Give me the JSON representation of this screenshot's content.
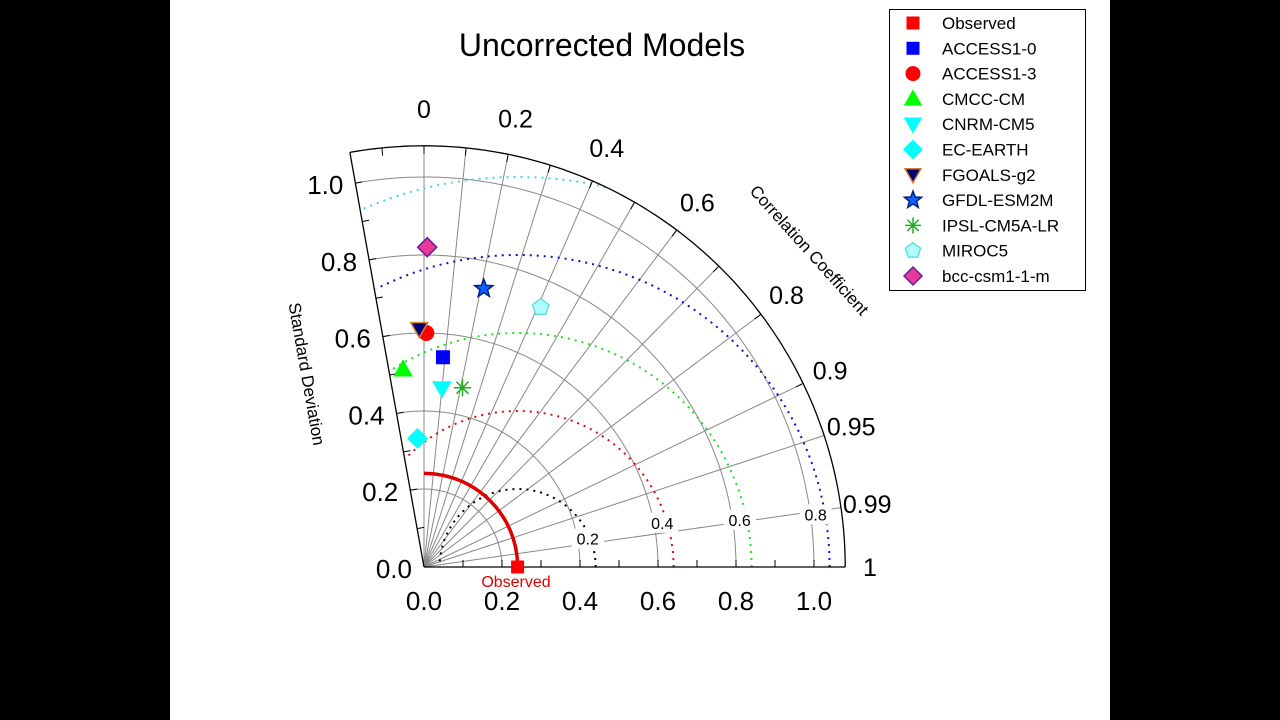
{
  "chart_data": {
    "type": "taylor",
    "title": "Uncorrected Models",
    "xlabel": "",
    "ylabel": "Standard Deviation",
    "angular_label": "Correlation Coefficient",
    "std_range": [
      0,
      1.08
    ],
    "std_ticks": [
      "0.0",
      "0.2",
      "0.4",
      "0.6",
      "0.8",
      "1.0"
    ],
    "std_tick_values": [
      0,
      0.2,
      0.4,
      0.6,
      0.8,
      1.0
    ],
    "correlation_ticks": [
      "0",
      "0.2",
      "0.4",
      "0.6",
      "0.8",
      "0.9",
      "0.95",
      "0.99",
      "1"
    ],
    "correlation_tick_values": [
      0,
      0.2,
      0.4,
      0.6,
      0.8,
      0.9,
      0.95,
      0.99,
      1
    ],
    "correlation_min": -0.176,
    "rms_contours": [
      {
        "value": 0.2,
        "label": "0.2",
        "color": "#000000"
      },
      {
        "value": 0.4,
        "label": "0.4",
        "color": "#d01010"
      },
      {
        "value": 0.6,
        "label": "0.6",
        "color": "#22dd22"
      },
      {
        "value": 0.8,
        "label": "0.8",
        "color": "#1010c0"
      },
      {
        "value": 1.0,
        "label": "",
        "color": "#40d8d8"
      }
    ],
    "reference": {
      "name": "Observed",
      "std": 0.24,
      "corr": 1.0,
      "color": "#e00000"
    },
    "legend_position": "top-right",
    "grid": true,
    "series": [
      {
        "name": "Observed",
        "std": 0.24,
        "corr": 1.0,
        "marker": "square",
        "fill": "#ff0000",
        "stroke": "#ff0000"
      },
      {
        "name": "ACCESS1-0",
        "std": 0.54,
        "corr": 0.09,
        "marker": "square",
        "fill": "#0000ff",
        "stroke": "#0000ff"
      },
      {
        "name": "ACCESS1-3",
        "std": 0.6,
        "corr": 0.01,
        "marker": "circle",
        "fill": "#ff0000",
        "stroke": "#ff0000"
      },
      {
        "name": "CMCC-CM",
        "std": 0.51,
        "corr": -0.105,
        "marker": "triangle-up",
        "fill": "#00ff00",
        "stroke": "#00ff00"
      },
      {
        "name": "CNRM-CM5",
        "std": 0.46,
        "corr": 0.1,
        "marker": "triangle-down",
        "fill": "#00ffff",
        "stroke": "#00ffff"
      },
      {
        "name": "EC-EARTH",
        "std": 0.33,
        "corr": -0.05,
        "marker": "diamond",
        "fill": "#00ffff",
        "stroke": "#00ffff"
      },
      {
        "name": "FGOALS-g2",
        "std": 0.61,
        "corr": -0.02,
        "marker": "triangle-down",
        "fill": "#000070",
        "stroke": "#d08030"
      },
      {
        "name": "GFDL-ESM2M",
        "std": 0.73,
        "corr": 0.21,
        "marker": "star",
        "fill": "#1060ff",
        "stroke": "#002080"
      },
      {
        "name": "IPSL-CM5A-LR",
        "std": 0.47,
        "corr": 0.21,
        "marker": "asterisk",
        "fill": "#22aa22",
        "stroke": "#22aa22"
      },
      {
        "name": "MIROC5",
        "std": 0.73,
        "corr": 0.41,
        "marker": "pentagon",
        "fill": "#b0ffff",
        "stroke": "#60e0e0"
      },
      {
        "name": "bcc-csm1-1-m",
        "std": 0.82,
        "corr": 0.01,
        "marker": "diamond",
        "fill": "#e83898",
        "stroke": "#6020a0"
      }
    ]
  }
}
